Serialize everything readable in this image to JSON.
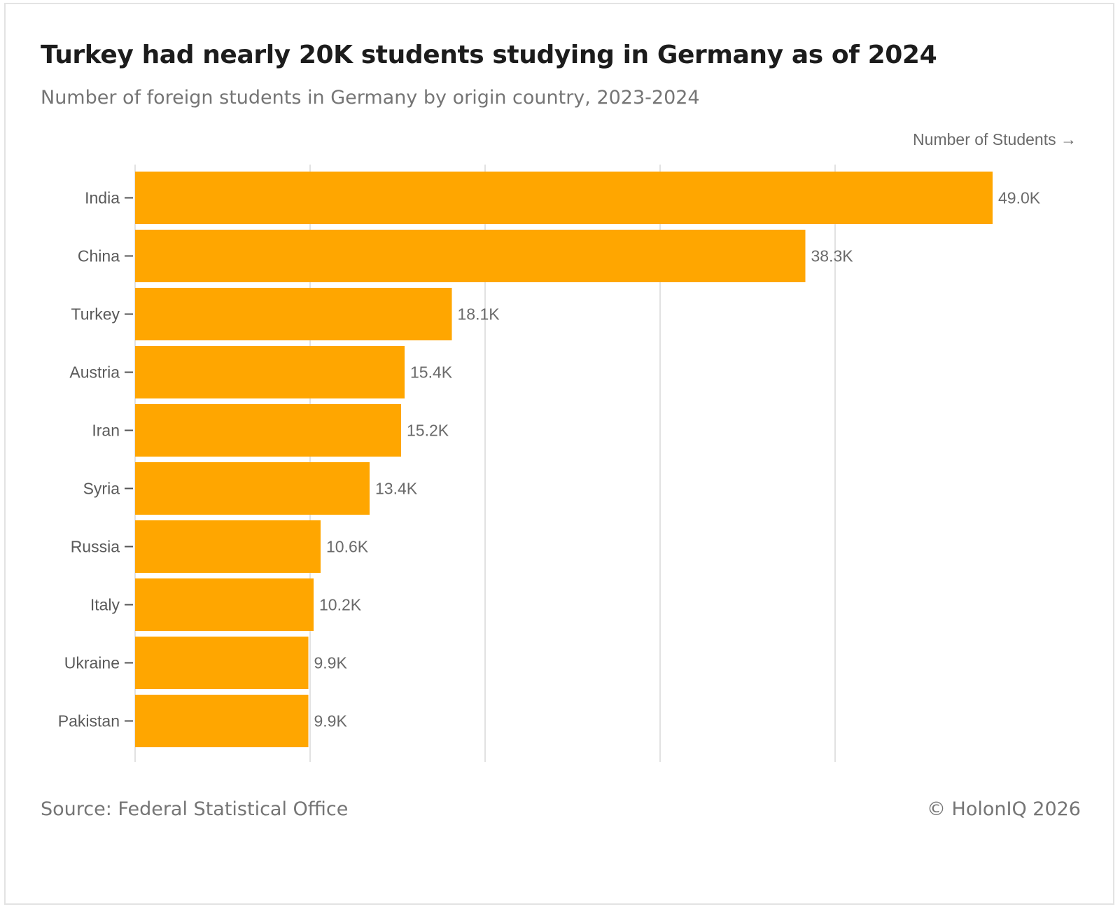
{
  "chart_data": {
    "type": "bar",
    "orientation": "horizontal",
    "title": "Turkey had nearly 20K students studying in Germany as of 2024",
    "subtitle": "Number of foreign students in Germany by origin country, 2023-2024",
    "xlabel": "Number of Students →",
    "ylabel": "",
    "categories": [
      "India",
      "China",
      "Turkey",
      "Austria",
      "Iran",
      "Syria",
      "Russia",
      "Italy",
      "Ukraine",
      "Pakistan"
    ],
    "values": [
      49000,
      38300,
      18100,
      15400,
      15200,
      13400,
      10600,
      10200,
      9900,
      9900
    ],
    "labels": [
      "49.0K",
      "38.3K",
      "18.1K",
      "15.4K",
      "15.2K",
      "13.4K",
      "10.6K",
      "10.2K",
      "9.9K",
      "9.9K"
    ],
    "xlim": [
      0,
      50000
    ],
    "gridlines": [
      0,
      10000,
      20000,
      30000,
      40000
    ],
    "grid": true,
    "bar_color": "#FFA600",
    "source": "Source: Federal Statistical Office",
    "credit": "© HolonIQ 2026"
  }
}
